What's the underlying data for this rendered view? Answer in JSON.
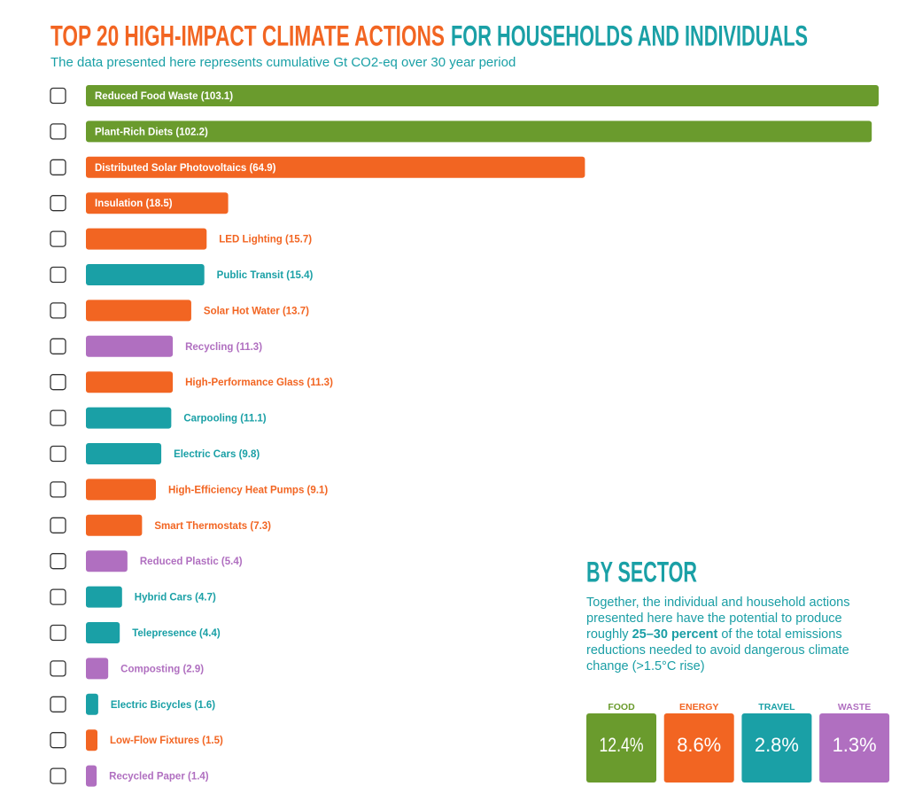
{
  "chart_data": {
    "type": "bar",
    "orientation": "horizontal",
    "title_parts": [
      "TOP 20 HIGH-IMPACT CLIMATE ACTIONS",
      "FOR HOUSEHOLDS AND INDIVIDUALS"
    ],
    "title_colors": [
      "#f26522",
      "#1aa0a6"
    ],
    "subtitle": "The data presented here represents cumulative Gt CO2-eq over 30 year period",
    "categories": [
      "Reduced Food Waste (103.1)",
      "Plant-Rich Diets (102.2)",
      "Distributed Solar Photovoltaics (64.9)",
      "Insulation (18.5)",
      "LED Lighting (15.7)",
      "Public Transit (15.4)",
      "Solar Hot Water (13.7)",
      "Recycling (11.3)",
      "High-Performance Glass (11.3)",
      "Carpooling (11.1)",
      "Electric Cars (9.8)",
      "High-Efficiency Heat Pumps (9.1)",
      "Smart Thermostats (7.3)",
      "Reduced Plastic (5.4)",
      "Hybrid Cars (4.7)",
      "Telepresence (4.4)",
      "Composting (2.9)",
      "Electric Bicycles (1.6)",
      "Low-Flow Fixtures (1.5)",
      "Recycled Paper (1.4)"
    ],
    "values": [
      103.1,
      102.2,
      64.9,
      18.5,
      15.7,
      15.4,
      13.7,
      11.3,
      11.3,
      11.1,
      9.8,
      9.1,
      7.3,
      5.4,
      4.7,
      4.4,
      2.9,
      1.6,
      1.5,
      1.4
    ],
    "colors": [
      "#6a9b2d",
      "#6a9b2d",
      "#f26522",
      "#f26522",
      "#f26522",
      "#1aa0a6",
      "#f26522",
      "#b06fc0",
      "#f26522",
      "#1aa0a6",
      "#1aa0a6",
      "#f26522",
      "#f26522",
      "#b06fc0",
      "#1aa0a6",
      "#1aa0a6",
      "#b06fc0",
      "#1aa0a6",
      "#f26522",
      "#b06fc0"
    ]
  },
  "sector_panel": {
    "heading": "BY SECTOR",
    "text_before": "Together, the individual and household actions presented here have the potential to produce roughly ",
    "text_bold": "25–30 percent",
    "text_after": " of the total emissions reductions needed to avoid dangerous climate change (>1.5°C rise)",
    "sectors": [
      {
        "name": "FOOD",
        "value": 12.4,
        "label": "12.4%",
        "color": "#6a9b2d"
      },
      {
        "name": "ENERGY",
        "value": 8.6,
        "label": "8.6%",
        "color": "#f26522"
      },
      {
        "name": "TRAVEL",
        "value": 2.8,
        "label": "2.8%",
        "color": "#1aa0a6"
      },
      {
        "name": "WASTE",
        "value": 1.3,
        "label": "1.3%",
        "color": "#b06fc0"
      }
    ]
  }
}
